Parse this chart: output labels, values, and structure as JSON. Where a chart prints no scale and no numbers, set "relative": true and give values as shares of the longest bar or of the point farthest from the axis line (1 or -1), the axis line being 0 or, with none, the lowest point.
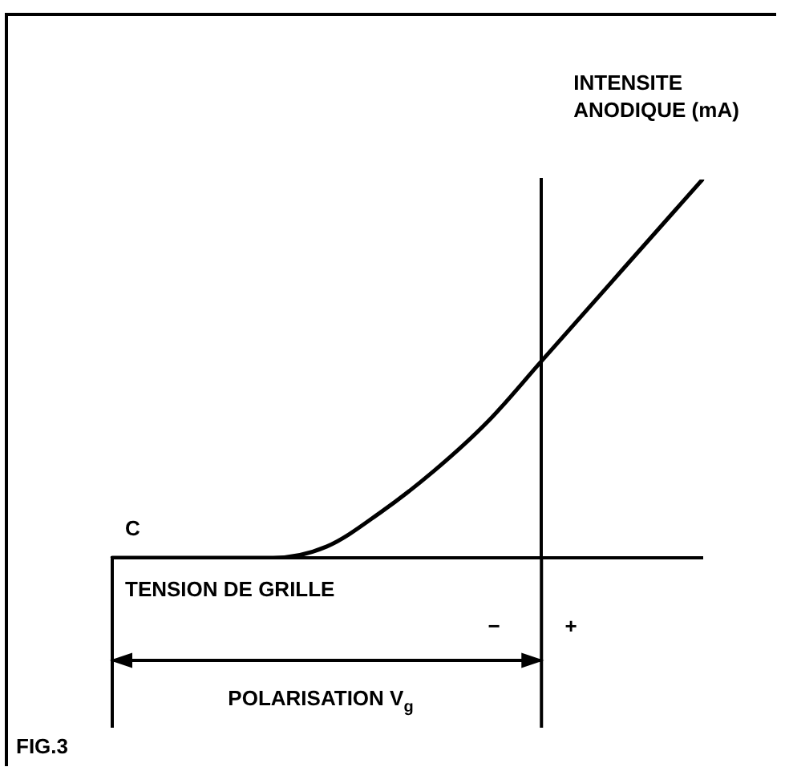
{
  "chart_data": {
    "type": "line",
    "relative": true,
    "xlabel": "TENSION DE GRILLE",
    "ylabel": "INTENSITE ANODIQUE (mA)",
    "categories": [
      null,
      null,
      null,
      null,
      null,
      null,
      null,
      null,
      null,
      null,
      null,
      null
    ],
    "series": [
      {
        "color": "#000000",
        "values": [
          0,
          0,
          0,
          0,
          0.03,
          0.12,
          0.23,
          0.36,
          0.52,
          0.68,
          0.84,
          1
        ]
      }
    ],
    "annotations": [
      "C",
      "−",
      "+",
      "POLARISATION V$_{g}$",
      "FIG.3"
    ],
    "grid": false,
    "legend": false,
    "marker": "none",
    "line_style": "solid"
  }
}
